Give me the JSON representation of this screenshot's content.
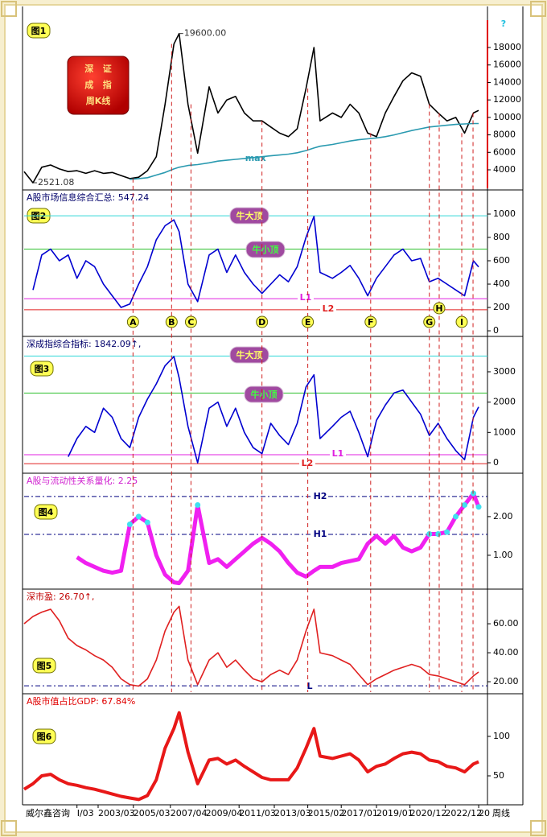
{
  "chart_data": [
    {
      "type": "line",
      "badge": "图1",
      "xlim": [
        1999,
        2025.3
      ],
      "ylim": [
        1790,
        22700
      ],
      "yticks": [
        4000,
        6000,
        8000,
        10000,
        12000,
        14000,
        16000,
        18000
      ],
      "box": [
        "深   证",
        "成   指",
        "周K线"
      ],
      "corner": "?",
      "x": [
        1999,
        1999.5,
        2000,
        2000.5,
        2001,
        2001.5,
        2002,
        2002.5,
        2003,
        2003.5,
        2004,
        2004.5,
        2005,
        2005.5,
        2006,
        2006.5,
        2007,
        2007.5,
        2007.8,
        2008.3,
        2008.85,
        2009.5,
        2010,
        2010.5,
        2011,
        2011.5,
        2012,
        2012.5,
        2013,
        2013.5,
        2014,
        2014.5,
        2015,
        2015.45,
        2015.8,
        2016.5,
        2017,
        2017.5,
        2018,
        2018.5,
        2019,
        2019.5,
        2020,
        2020.5,
        2021,
        2021.5,
        2022,
        2022.5,
        2023,
        2023.5,
        2024,
        2024.5,
        2024.8
      ],
      "series": [
        {
          "color": "#000000",
          "width": 1.6,
          "values": [
            3800,
            2521.08,
            4300,
            4550,
            4100,
            3800,
            3900,
            3600,
            3900,
            3600,
            3700,
            3350,
            3000,
            3150,
            3900,
            5500,
            11500,
            18400,
            19600,
            11500,
            5900,
            13500,
            10500,
            12000,
            12400,
            10500,
            9600,
            9600,
            8900,
            8200,
            7800,
            8700,
            13300,
            18000,
            9600,
            10500,
            10000,
            11500,
            10500,
            8200,
            7800,
            10500,
            12400,
            14200,
            15100,
            14700,
            11500,
            10500,
            9600,
            10000,
            8200,
            10500,
            10800
          ]
        },
        {
          "name": "max",
          "color": "#2a9ab0",
          "width": 1.6,
          "values": [
            null,
            null,
            null,
            null,
            null,
            null,
            null,
            null,
            null,
            null,
            null,
            null,
            2900,
            3000,
            3100,
            3400,
            3700,
            4100,
            4300,
            4500,
            4600,
            4800,
            5000,
            5100,
            5200,
            5300,
            5400,
            5500,
            5600,
            5700,
            5800,
            5950,
            6200,
            6500,
            6700,
            6900,
            7100,
            7300,
            7450,
            7550,
            7650,
            7800,
            8000,
            8250,
            8500,
            8700,
            8900,
            9000,
            9100,
            9200,
            9250,
            9300,
            9300
          ]
        }
      ],
      "annotations": [
        {
          "label": "19600.00",
          "x": 2007.8,
          "y": 19600
        },
        {
          "label": "2521.08",
          "x": 1999.5,
          "y": 2521.08
        }
      ]
    },
    {
      "type": "line",
      "badge": "图2",
      "title": "A股市场信息综合汇总: 547.24",
      "title_color": "#00006a",
      "xlim": [
        1999,
        2025.3
      ],
      "ylim": [
        -48,
        1193
      ],
      "yticks": [
        0,
        200,
        400,
        600,
        800,
        1000
      ],
      "levels": [
        {
          "label": "牛大顶",
          "value": 985,
          "color": "#30d8d8",
          "style": "pill",
          "text_color": "#ffff66"
        },
        {
          "label": "牛小顶",
          "value": 700,
          "color": "#30c030",
          "style": "pill",
          "text_color": "#40ff40"
        },
        {
          "label": "L1",
          "value": 275,
          "color": "#e020e0"
        },
        {
          "label": "L2",
          "value": 180,
          "color": "#e02020"
        }
      ],
      "markers": [
        {
          "label": "A",
          "x": 2005.18
        },
        {
          "label": "B",
          "x": 2007.37
        },
        {
          "label": "C",
          "x": 2008.47
        },
        {
          "label": "D",
          "x": 2012.5
        },
        {
          "label": "E",
          "x": 2015.1
        },
        {
          "label": "F",
          "x": 2018.67
        },
        {
          "label": "G",
          "x": 2022.0
        },
        {
          "label": "H",
          "x": 2022.56
        },
        {
          "label": "I",
          "x": 2023.84
        },
        {
          "x": 2024.48
        }
      ],
      "x": [
        1999,
        1999.5,
        2000,
        2000.5,
        2001,
        2001.5,
        2002,
        2002.5,
        2003,
        2003.5,
        2004,
        2004.5,
        2005,
        2005.5,
        2006,
        2006.5,
        2007,
        2007.5,
        2007.8,
        2008.3,
        2008.85,
        2009.5,
        2010,
        2010.5,
        2011,
        2011.5,
        2012,
        2012.5,
        2013,
        2013.5,
        2014,
        2014.5,
        2015,
        2015.45,
        2015.8,
        2016.5,
        2017,
        2017.5,
        2018,
        2018.5,
        2019,
        2019.5,
        2020,
        2020.5,
        2021,
        2021.5,
        2022,
        2022.5,
        2023,
        2023.5,
        2024,
        2024.5,
        2024.8
      ],
      "series": [
        {
          "color": "#0000d0",
          "width": 1.6,
          "values": [
            null,
            350,
            650,
            700,
            600,
            650,
            450,
            600,
            550,
            400,
            300,
            200,
            230,
            400,
            550,
            780,
            900,
            950,
            850,
            400,
            250,
            650,
            700,
            500,
            650,
            500,
            400,
            320,
            400,
            480,
            420,
            550,
            800,
            980,
            500,
            450,
            500,
            560,
            450,
            300,
            450,
            550,
            650,
            700,
            600,
            620,
            420,
            450,
            400,
            350,
            300,
            600,
            547.24
          ]
        }
      ]
    },
    {
      "type": "line",
      "badge": "图3",
      "title": "深成指综合指标: 1842.09↑,",
      "title_color": "#00006a",
      "xlim": [
        1999,
        2025.3
      ],
      "ylim": [
        -345,
        4114
      ],
      "yticks": [
        0,
        1000,
        2000,
        3000
      ],
      "levels": [
        {
          "label": "牛大顶",
          "value": 3520,
          "color": "#30d8d8",
          "style": "pill",
          "text_color": "#ffff66"
        },
        {
          "label": "牛小顶",
          "value": 2300,
          "color": "#30c030",
          "style": "pill",
          "text_color": "#40ff40"
        },
        {
          "label": "L1",
          "value": 265,
          "color": "#e020e0"
        },
        {
          "label": "L2",
          "value": -30,
          "color": "#e02020"
        }
      ],
      "x": [
        1999,
        1999.5,
        2000,
        2000.5,
        2001,
        2001.5,
        2002,
        2002.5,
        2003,
        2003.5,
        2004,
        2004.5,
        2005,
        2005.5,
        2006,
        2006.5,
        2007,
        2007.5,
        2007.8,
        2008.3,
        2008.85,
        2009.5,
        2010,
        2010.5,
        2011,
        2011.5,
        2012,
        2012.5,
        2013,
        2013.5,
        2014,
        2014.5,
        2015,
        2015.45,
        2015.8,
        2016.5,
        2017,
        2017.5,
        2018,
        2018.5,
        2019,
        2019.5,
        2020,
        2020.5,
        2021,
        2021.5,
        2022,
        2022.5,
        2023,
        2023.5,
        2024,
        2024.5,
        2024.8
      ],
      "series": [
        {
          "color": "#0000d0",
          "width": 1.6,
          "values": [
            null,
            null,
            null,
            null,
            null,
            200,
            800,
            1200,
            1000,
            1800,
            1500,
            800,
            500,
            1500,
            2100,
            2600,
            3200,
            3500,
            2800,
            1200,
            0,
            1800,
            2000,
            1200,
            1800,
            1000,
            500,
            300,
            1300,
            900,
            600,
            1300,
            2500,
            2900,
            800,
            1200,
            1500,
            1700,
            1000,
            200,
            1400,
            1900,
            2300,
            2400,
            2000,
            1600,
            900,
            1300,
            800,
            400,
            100,
            1500,
            1842.09
          ]
        }
      ]
    },
    {
      "type": "line",
      "badge": "图4",
      "title": "A股与流动性关系量化: 2.25",
      "title_color": "#d020d0",
      "xlim": [
        1999,
        2025.3
      ],
      "ylim": [
        0.125,
        3.08
      ],
      "yticks": [
        {
          "value": 1,
          "label": "1.00"
        },
        {
          "value": 2,
          "label": "2.00"
        }
      ],
      "levels": [
        {
          "label": "H2",
          "value": 2.52,
          "color": "#000080",
          "dash": true
        },
        {
          "label": "H1",
          "value": 1.54,
          "color": "#000080",
          "dash": true
        }
      ],
      "highlight": {
        "level": 1,
        "color": "#40e0f0"
      },
      "x": [
        1999,
        1999.5,
        2000,
        2000.5,
        2001,
        2001.5,
        2002,
        2002.5,
        2003,
        2003.5,
        2004,
        2004.5,
        2005,
        2005.5,
        2006,
        2006.5,
        2007,
        2007.5,
        2007.8,
        2008.3,
        2008.85,
        2009.5,
        2010,
        2010.5,
        2011,
        2011.5,
        2012,
        2012.5,
        2013,
        2013.5,
        2014,
        2014.5,
        2015,
        2015.45,
        2015.8,
        2016.5,
        2017,
        2017.5,
        2018,
        2018.5,
        2019,
        2019.5,
        2020,
        2020.5,
        2021,
        2021.5,
        2022,
        2022.5,
        2023,
        2023.5,
        2024,
        2024.5,
        2024.8
      ],
      "series": [
        {
          "color": "#f020f0",
          "width": 5,
          "values": [
            null,
            null,
            null,
            null,
            null,
            null,
            0.95,
            0.8,
            0.7,
            0.6,
            0.55,
            0.6,
            1.8,
            2.0,
            1.85,
            1.0,
            0.5,
            0.3,
            0.28,
            0.6,
            2.3,
            0.8,
            0.9,
            0.7,
            0.9,
            1.1,
            1.3,
            1.45,
            1.3,
            1.1,
            0.8,
            0.55,
            0.45,
            0.6,
            0.7,
            0.7,
            0.8,
            0.85,
            0.9,
            1.3,
            1.5,
            1.3,
            1.5,
            1.2,
            1.1,
            1.2,
            1.55,
            1.55,
            1.6,
            2.0,
            2.3,
            2.6,
            2.25
          ]
        }
      ]
    },
    {
      "type": "line",
      "badge": "图5",
      "title": "深市盈: 26.70↑,",
      "title_color": "#c00000",
      "xlim": [
        1999,
        2025.3
      ],
      "ylim": [
        11.7,
        82.8
      ],
      "yticks": [
        {
          "value": 20,
          "label": "20.00"
        },
        {
          "value": 40,
          "label": "40.00"
        },
        {
          "value": 60,
          "label": "60.00"
        }
      ],
      "levels": [
        {
          "label": "L",
          "value": 17.2,
          "color": "#000080",
          "dash": true
        }
      ],
      "x": [
        1999,
        1999.5,
        2000,
        2000.5,
        2001,
        2001.5,
        2002,
        2002.5,
        2003,
        2003.5,
        2004,
        2004.5,
        2005,
        2005.5,
        2006,
        2006.5,
        2007,
        2007.5,
        2007.8,
        2008.3,
        2008.85,
        2009.5,
        2010,
        2010.5,
        2011,
        2011.5,
        2012,
        2012.5,
        2013,
        2013.5,
        2014,
        2014.5,
        2015,
        2015.45,
        2015.8,
        2016.5,
        2017,
        2017.5,
        2018,
        2018.5,
        2019,
        2019.5,
        2020,
        2020.5,
        2021,
        2021.5,
        2022,
        2022.5,
        2023,
        2023.5,
        2024,
        2024.5,
        2024.8
      ],
      "series": [
        {
          "color": "#e02020",
          "width": 1.6,
          "values": [
            60,
            65,
            68,
            70,
            62,
            50,
            45,
            42,
            38,
            35,
            30,
            22,
            18,
            17,
            22,
            35,
            55,
            68,
            72,
            35,
            18,
            35,
            40,
            30,
            35,
            28,
            22,
            20,
            25,
            28,
            25,
            35,
            55,
            70,
            40,
            38,
            35,
            32,
            25,
            18,
            22,
            25,
            28,
            30,
            32,
            30,
            25,
            24,
            22,
            20,
            18,
            24,
            26.7
          ]
        }
      ]
    },
    {
      "type": "line",
      "badge": "图6",
      "title": "A股市值占比GDP: 67.84%",
      "title_color": "#e00000",
      "xlim": [
        1999,
        2025.3
      ],
      "ylim": [
        13.3,
        152
      ],
      "yticks": [
        50,
        100
      ],
      "xticks": [
        {
          "value": 2002.0,
          "label": "I/03"
        },
        {
          "value": 2003.2,
          "label": "2003/03"
        },
        {
          "value": 2005.2,
          "label": "2005/03"
        },
        {
          "value": 2007.3,
          "label": "2007/04"
        },
        {
          "value": 2009.3,
          "label": "2009/04"
        },
        {
          "value": 2011.2,
          "label": "2011/03"
        },
        {
          "value": 2013.2,
          "label": "2013/03"
        },
        {
          "value": 2015.1,
          "label": "2015/02"
        },
        {
          "value": 2017.0,
          "label": "2017/01"
        },
        {
          "value": 2019.0,
          "label": "2019/01"
        },
        {
          "value": 2020.9,
          "label": "2020/12"
        },
        {
          "value": 2022.9,
          "label": "2022/12"
        },
        {
          "value": 2024.8,
          "label": "20"
        }
      ],
      "x": [
        1999,
        1999.5,
        2000,
        2000.5,
        2001,
        2001.5,
        2002,
        2002.5,
        2003,
        2003.5,
        2004,
        2004.5,
        2005,
        2005.5,
        2006,
        2006.5,
        2007,
        2007.5,
        2007.8,
        2008.3,
        2008.85,
        2009.5,
        2010,
        2010.5,
        2011,
        2011.5,
        2012,
        2012.5,
        2013,
        2013.5,
        2014,
        2014.5,
        2015,
        2015.45,
        2015.8,
        2016.5,
        2017,
        2017.5,
        2018,
        2018.5,
        2019,
        2019.5,
        2020,
        2020.5,
        2021,
        2021.5,
        2022,
        2022.5,
        2023,
        2023.5,
        2024,
        2024.5,
        2024.8
      ],
      "series": [
        {
          "color": "#e81818",
          "width": 4,
          "values": [
            33,
            40,
            50,
            52,
            45,
            40,
            38,
            35,
            33,
            30,
            27,
            24,
            22,
            20,
            25,
            45,
            85,
            110,
            130,
            80,
            40,
            70,
            72,
            65,
            70,
            62,
            55,
            48,
            45,
            45,
            45,
            60,
            85,
            110,
            75,
            72,
            75,
            78,
            70,
            55,
            62,
            65,
            72,
            78,
            80,
            78,
            70,
            68,
            62,
            60,
            55,
            65,
            67.84
          ]
        }
      ]
    }
  ],
  "footer": {
    "left": "威尔鑫咨询",
    "right": "周线"
  }
}
